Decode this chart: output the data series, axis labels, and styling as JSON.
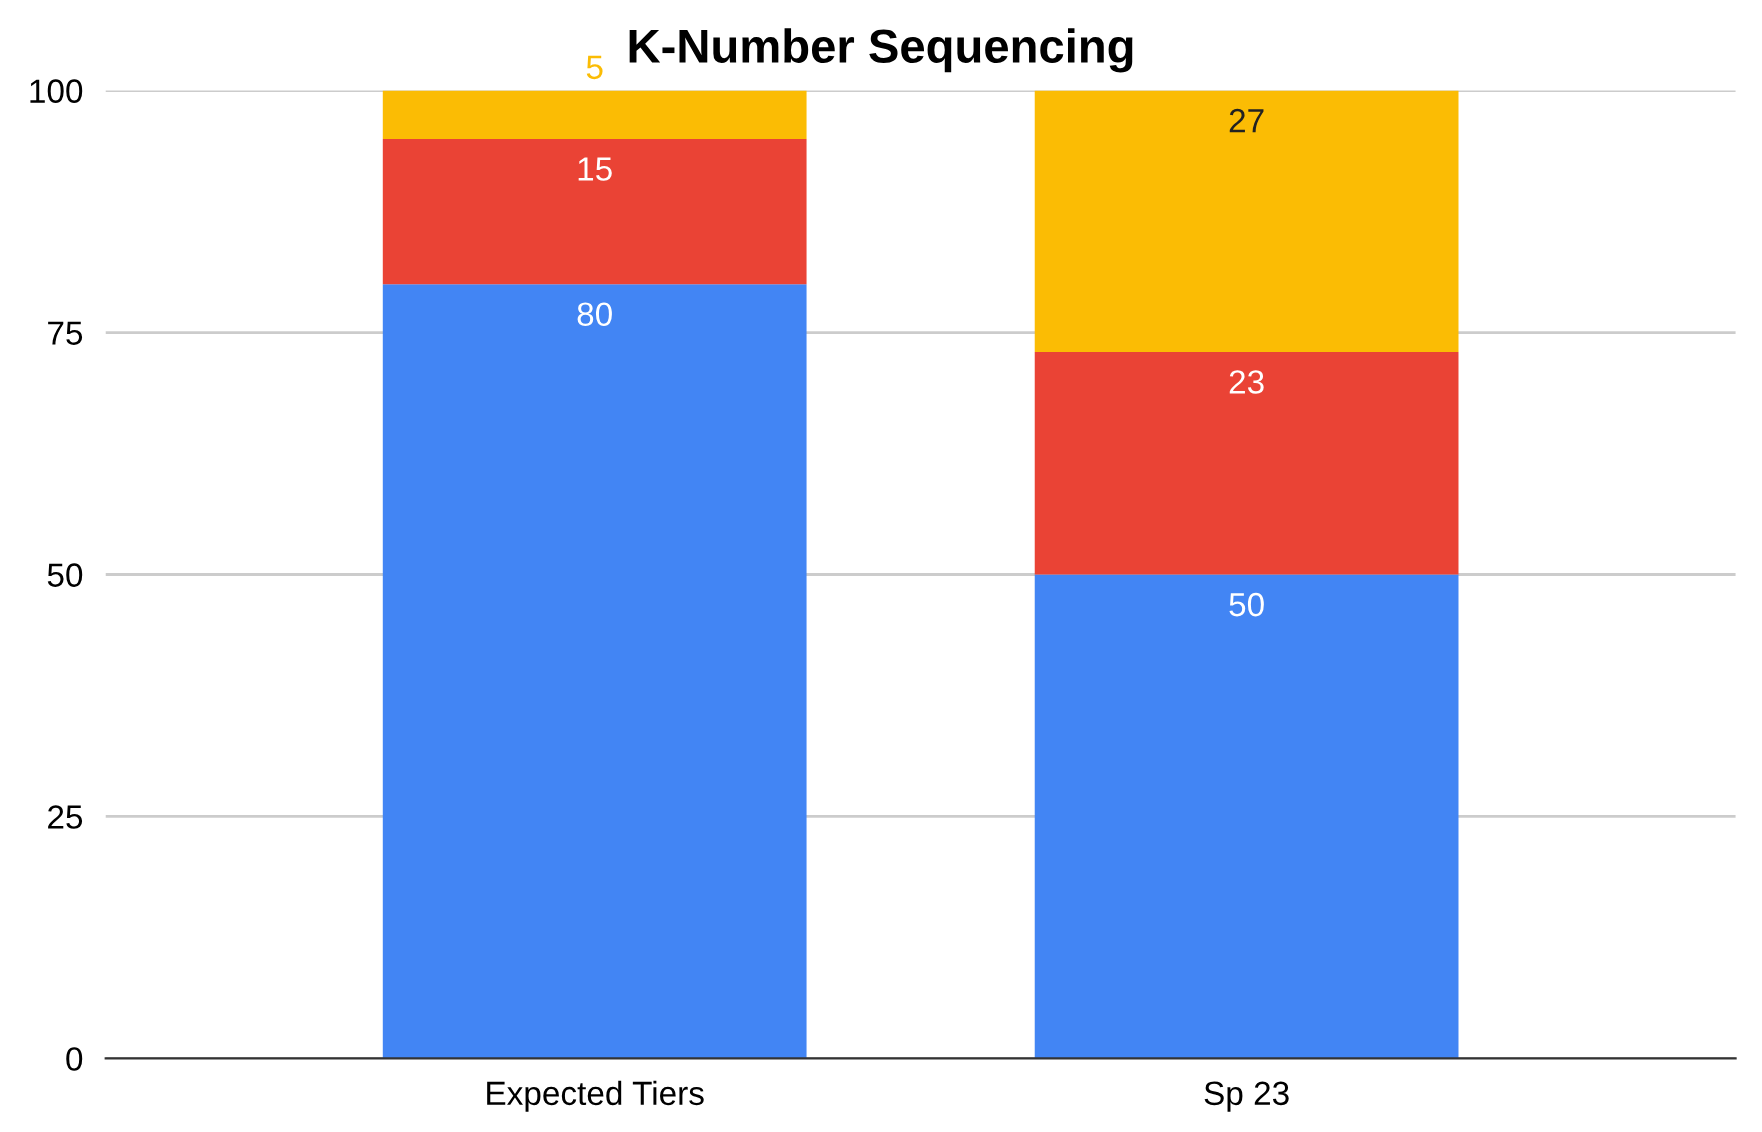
{
  "chart_data": {
    "type": "bar",
    "title": "K-Number Sequencing",
    "stacked": true,
    "categories": [
      "Expected Tiers",
      "Sp 23"
    ],
    "series": [
      {
        "color": "#4285f4",
        "values": [
          80,
          50
        ]
      },
      {
        "color": "#ea4335",
        "values": [
          15,
          23
        ]
      },
      {
        "color": "#fbbc04",
        "values": [
          5,
          27
        ]
      }
    ],
    "ylim": [
      0,
      100
    ],
    "yticks": [
      0,
      25,
      50,
      75,
      100
    ],
    "grid": "y",
    "data_labels": true,
    "legend": false
  }
}
